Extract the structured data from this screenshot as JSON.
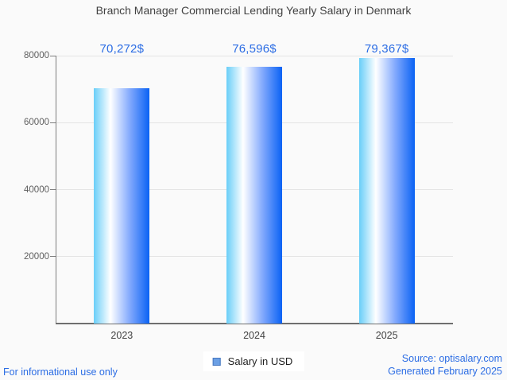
{
  "title": "Branch Manager Commercial Lending Yearly Salary in Denmark",
  "chart_data": {
    "type": "bar",
    "categories": [
      "2023",
      "2024",
      "2025"
    ],
    "values": [
      70272,
      76596,
      79367
    ],
    "value_labels": [
      "70,272$",
      "76,596$",
      "79,367$"
    ],
    "title": "Branch Manager Commercial Lending Yearly Salary in Denmark",
    "xlabel": "",
    "ylabel": "",
    "ylim": [
      0,
      80000
    ],
    "yticks": [
      20000,
      40000,
      60000,
      80000
    ],
    "ytick_labels": [
      "20000",
      "40000",
      "60000",
      "80000"
    ],
    "grid": true,
    "legend_position": "bottom-center",
    "series_name": "Salary in USD",
    "value_label_color": "#2c6de4",
    "bar_gradient": [
      "#69cef8",
      "#ffffff",
      "#82a9fd",
      "#0a62f4"
    ]
  },
  "legend": {
    "label": "Salary in USD",
    "marker_color": "#6b9fe4",
    "marker_border_color": "#4878c0"
  },
  "footer": {
    "left_note": "For informational use only",
    "source": "Source: optisalary.com",
    "generated": "Generated February 2025"
  }
}
